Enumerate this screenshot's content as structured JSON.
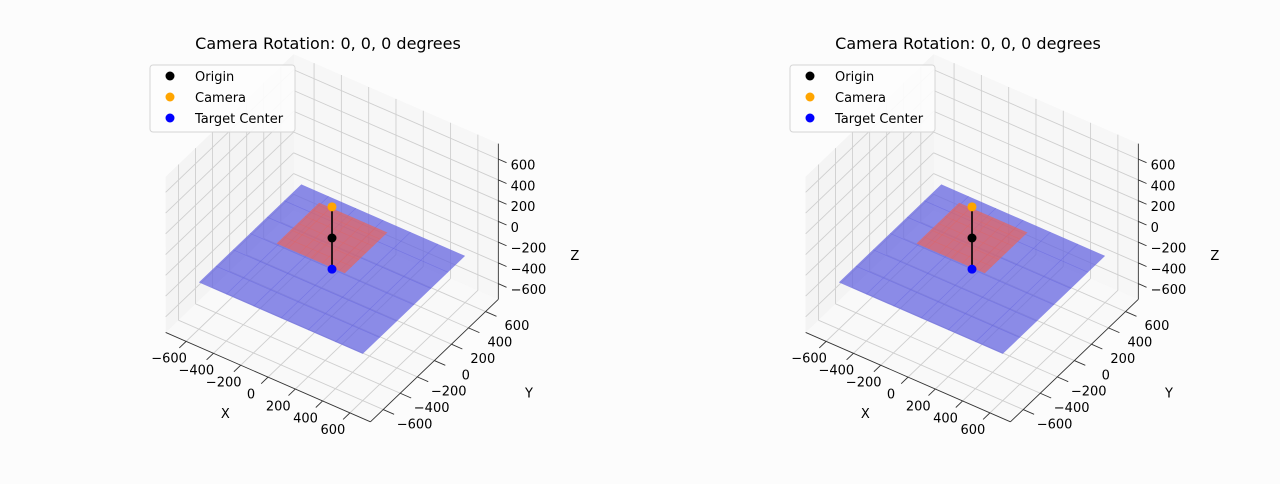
{
  "chart_data": [
    {
      "type": "scatter3d",
      "title": "Camera Rotation: 0, 0, 0 degrees",
      "xlabel": "X",
      "ylabel": "Y",
      "zlabel": "Z",
      "xlim": [
        -750,
        750
      ],
      "ylim": [
        -750,
        750
      ],
      "zlim": [
        -750,
        750
      ],
      "xticks": [
        -600,
        -400,
        -200,
        0,
        200,
        400,
        600
      ],
      "yticks": [
        -600,
        -400,
        -200,
        0,
        200,
        400,
        600
      ],
      "zticks": [
        -600,
        -400,
        -200,
        0,
        200,
        400,
        600
      ],
      "legend": {
        "position": "top-left",
        "entries": [
          {
            "label": "Origin",
            "color": "#000000"
          },
          {
            "label": "Camera",
            "color": "#ffa500"
          },
          {
            "label": "Target Center",
            "color": "#0000ff"
          }
        ]
      },
      "points": [
        {
          "name": "Origin",
          "x": 0,
          "y": 0,
          "z": 0
        },
        {
          "name": "Camera",
          "x": 0,
          "y": 0,
          "z": 300
        },
        {
          "name": "Target Center",
          "x": 0,
          "y": 0,
          "z": -300
        }
      ],
      "lines": [
        {
          "from": [
            0,
            0,
            300
          ],
          "to": [
            0,
            0,
            -300
          ],
          "color": "#000000"
        }
      ],
      "planes": [
        {
          "z": 0,
          "extent": [
            -250,
            250
          ],
          "color": "#e06666"
        },
        {
          "z": -300,
          "extent": [
            -600,
            600
          ],
          "color": "#6666e0"
        }
      ],
      "grid": true
    },
    {
      "type": "scatter3d",
      "title": "Camera Rotation: 0, 0, 0 degrees",
      "xlabel": "X",
      "ylabel": "Y",
      "zlabel": "Z",
      "xlim": [
        -750,
        750
      ],
      "ylim": [
        -750,
        750
      ],
      "zlim": [
        -750,
        750
      ],
      "xticks": [
        -600,
        -400,
        -200,
        0,
        200,
        400,
        600
      ],
      "yticks": [
        -600,
        -400,
        -200,
        0,
        200,
        400,
        600
      ],
      "zticks": [
        -600,
        -400,
        -200,
        0,
        200,
        400,
        600
      ],
      "legend": {
        "position": "top-left",
        "entries": [
          {
            "label": "Origin",
            "color": "#000000"
          },
          {
            "label": "Camera",
            "color": "#ffa500"
          },
          {
            "label": "Target Center",
            "color": "#0000ff"
          }
        ]
      },
      "points": [
        {
          "name": "Origin",
          "x": 0,
          "y": 0,
          "z": 0
        },
        {
          "name": "Camera",
          "x": 0,
          "y": 0,
          "z": 300
        },
        {
          "name": "Target Center",
          "x": 0,
          "y": 0,
          "z": -300
        }
      ],
      "lines": [
        {
          "from": [
            0,
            0,
            300
          ],
          "to": [
            0,
            0,
            -300
          ],
          "color": "#000000"
        }
      ],
      "planes": [
        {
          "z": 0,
          "extent": [
            -250,
            250
          ],
          "color": "#e06666"
        },
        {
          "z": -300,
          "extent": [
            -600,
            600
          ],
          "color": "#6666e0"
        }
      ],
      "grid": true
    }
  ]
}
